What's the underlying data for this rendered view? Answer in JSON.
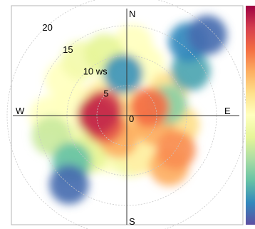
{
  "chart_data": {
    "type": "heatmap",
    "subtype": "polar",
    "title": "",
    "radial_unit": "ws",
    "radial_ticks": [
      {
        "value": 5,
        "label": "5"
      },
      {
        "value": 10,
        "label": "10 ws"
      },
      {
        "value": 15,
        "label": "15"
      },
      {
        "value": 20,
        "label": "20"
      }
    ],
    "center_label": "0",
    "compass": {
      "north": "N",
      "east": "E",
      "south": "S",
      "west": "W"
    },
    "max_radius": 20,
    "colormap": [
      "#5e4fa2",
      "#3288bd",
      "#66c2a5",
      "#abdda4",
      "#e6f598",
      "#ffffbf",
      "#fee08b",
      "#fdae61",
      "#f46d43",
      "#d53e4f",
      "#9e0142"
    ],
    "colorbar_visible": true,
    "colorbar_labels_visible": false,
    "grid": true,
    "blobs": [
      {
        "wd": 300,
        "ws": 12,
        "value": 0.5
      },
      {
        "wd": 320,
        "ws": 12,
        "value": 0.45
      },
      {
        "wd": 340,
        "ws": 11,
        "value": 0.4
      },
      {
        "wd": 355,
        "ws": 7,
        "value": 0.12
      },
      {
        "wd": 5,
        "ws": 12,
        "value": 0.5
      },
      {
        "wd": 20,
        "ws": 9,
        "value": 0.5
      },
      {
        "wd": 45,
        "ws": 19,
        "value": 0.05
      },
      {
        "wd": 40,
        "ws": 16,
        "value": 0.1
      },
      {
        "wd": 55,
        "ws": 13,
        "value": 0.15
      },
      {
        "wd": 60,
        "ws": 8,
        "value": 0.6
      },
      {
        "wd": 75,
        "ws": 7,
        "value": 0.25
      },
      {
        "wd": 300,
        "ws": 5,
        "value": 0.55
      },
      {
        "wd": 330,
        "ws": 5,
        "value": 0.5
      },
      {
        "wd": 270,
        "ws": 13,
        "value": 0.5
      },
      {
        "wd": 285,
        "ws": 4,
        "value": 0.9
      },
      {
        "wd": 270,
        "ws": 5,
        "value": 0.93
      },
      {
        "wd": 250,
        "ws": 4,
        "value": 0.85
      },
      {
        "wd": 200,
        "ws": 4,
        "value": 0.7
      },
      {
        "wd": 160,
        "ws": 2,
        "value": 0.55
      },
      {
        "wd": 70,
        "ws": 4,
        "value": 0.8
      },
      {
        "wd": 110,
        "ws": 5,
        "value": 0.7
      },
      {
        "wd": 100,
        "ws": 9,
        "value": 0.6
      },
      {
        "wd": 125,
        "ws": 10,
        "value": 0.75
      },
      {
        "wd": 140,
        "ws": 11,
        "value": 0.7
      },
      {
        "wd": 160,
        "ws": 7,
        "value": 0.55
      },
      {
        "wd": 175,
        "ws": 7,
        "value": 0.45
      },
      {
        "wd": 205,
        "ws": 7,
        "value": 0.5
      },
      {
        "wd": 225,
        "ws": 9,
        "value": 0.4
      },
      {
        "wd": 230,
        "ws": 12,
        "value": 0.2
      },
      {
        "wd": 220,
        "ws": 15,
        "value": 0.05
      },
      {
        "wd": 255,
        "ws": 13,
        "value": 0.35
      },
      {
        "wd": 240,
        "ws": 10,
        "value": 0.45
      },
      {
        "wd": 280,
        "ws": 9,
        "value": 0.5
      },
      {
        "wd": 90,
        "ws": 2,
        "value": 0.6
      },
      {
        "wd": 0,
        "ws": 2,
        "value": 0.55
      }
    ]
  }
}
